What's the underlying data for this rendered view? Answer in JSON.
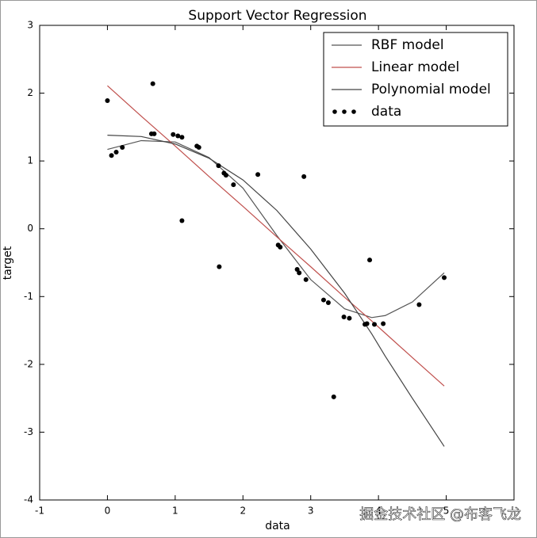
{
  "chart_data": {
    "type": "line",
    "title": "Support Vector Regression",
    "x_label": "data",
    "y_label": "target",
    "xlim": [
      -1,
      6
    ],
    "ylim": [
      -4,
      3
    ],
    "xticks": [
      -1,
      0,
      1,
      2,
      3,
      4,
      5
    ],
    "yticks": [
      -4,
      -3,
      -2,
      -1,
      0,
      1,
      2,
      3
    ],
    "legend": "upper right",
    "series": [
      {
        "name": "RBF model",
        "color": "#555555",
        "x": [
          0,
          0.5,
          1,
          1.5,
          2,
          2.5,
          3,
          3.5,
          3.9,
          4.1,
          4.5,
          4.97
        ],
        "values": [
          1.17,
          1.3,
          1.28,
          1.05,
          0.6,
          -0.1,
          -0.75,
          -1.18,
          -1.31,
          -1.28,
          -1.08,
          -0.65
        ]
      },
      {
        "name": "Linear model",
        "color": "#c0504d",
        "x": [
          0,
          0.5,
          1,
          1.5,
          2,
          2.5,
          3,
          3.5,
          3.9,
          4.1,
          4.5,
          4.97
        ],
        "values": [
          2.11,
          1.66,
          1.22,
          0.77,
          0.33,
          -0.12,
          -0.56,
          -1.01,
          -1.36,
          -1.54,
          -1.9,
          -2.32
        ]
      },
      {
        "name": "Polynomial model",
        "color": "#444444",
        "x": [
          0,
          0.5,
          1,
          1.5,
          2,
          2.5,
          3,
          3.5,
          3.9,
          4.1,
          4.5,
          4.97
        ],
        "values": [
          1.38,
          1.36,
          1.25,
          1.04,
          0.72,
          0.27,
          -0.3,
          -0.95,
          -1.55,
          -1.88,
          -2.5,
          -3.21
        ]
      },
      {
        "name": "data",
        "type": "scatter",
        "color": "#000000",
        "x": [
          0,
          0.06,
          0.13,
          0.22,
          0.67,
          0.65,
          0.69,
          0.97,
          1.04,
          1.1,
          1.1,
          1.32,
          1.35,
          1.64,
          1.65,
          1.72,
          1.75,
          1.86,
          2.22,
          2.52,
          2.55,
          2.8,
          2.83,
          2.9,
          2.93,
          3.19,
          3.26,
          3.34,
          3.49,
          3.57,
          3.8,
          3.83,
          3.87,
          3.94,
          4.07,
          4.6,
          4.97
        ],
        "values": [
          1.89,
          1.08,
          1.13,
          1.2,
          2.14,
          1.4,
          1.4,
          1.39,
          1.37,
          1.35,
          0.12,
          1.22,
          1.2,
          0.93,
          -0.56,
          0.82,
          0.79,
          0.65,
          0.8,
          -0.24,
          -0.27,
          -0.6,
          -0.65,
          0.77,
          -0.75,
          -1.05,
          -1.09,
          -2.48,
          -1.3,
          -1.32,
          -1.41,
          -1.4,
          -0.46,
          -1.41,
          -1.4,
          -1.12,
          -0.72
        ]
      }
    ]
  },
  "watermark": "掘金技术社区 @布客飞龙"
}
